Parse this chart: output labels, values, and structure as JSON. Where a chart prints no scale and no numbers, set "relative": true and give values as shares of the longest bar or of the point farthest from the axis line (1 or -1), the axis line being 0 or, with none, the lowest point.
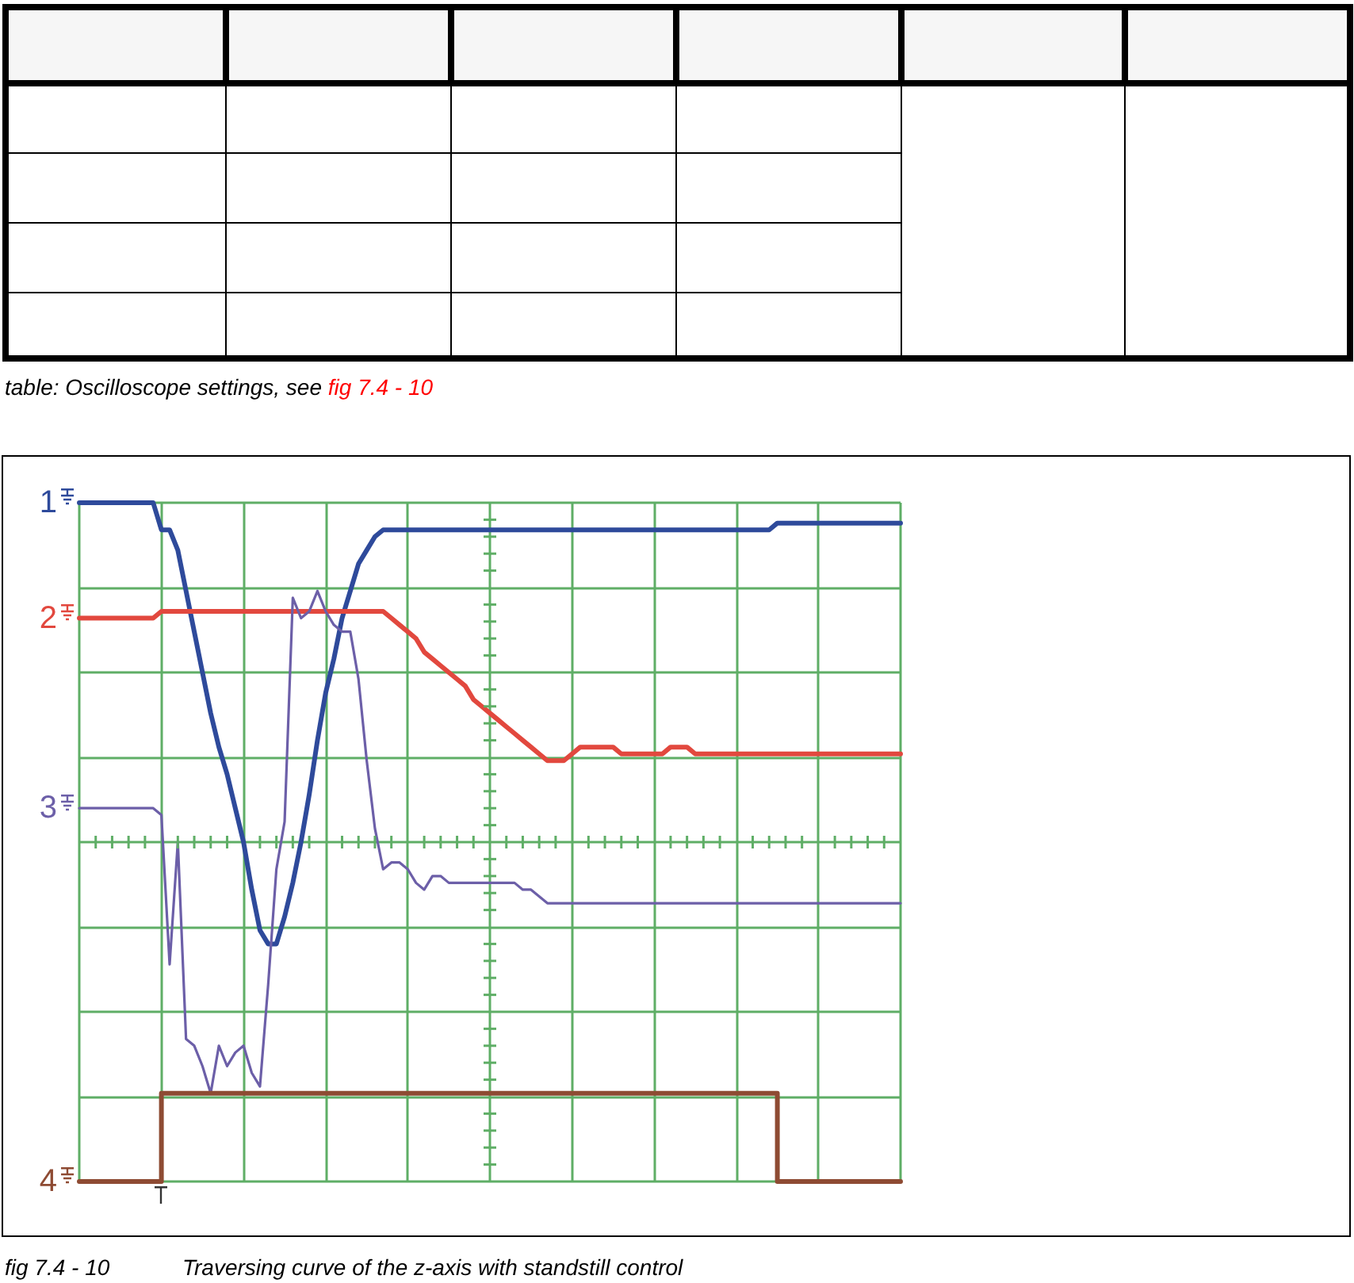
{
  "chart_data": {
    "type": "line",
    "title": "Traversing curve of the z-axis with standstill control",
    "annotations": [
      "table: Oscilloscope settings, see",
      "fig 7.4 - 10",
      "fig 7.4 - 10"
    ],
    "relative": true,
    "grid": true,
    "legend": "left",
    "marker": "none",
    "categories": [
      null,
      null,
      null,
      null,
      null,
      null,
      null,
      null,
      null,
      null,
      null,
      null,
      null,
      null,
      null,
      null,
      null,
      null,
      null,
      null,
      null,
      null,
      null,
      null,
      null,
      null,
      null,
      null,
      null,
      null,
      null,
      null,
      null,
      null,
      null,
      null,
      null,
      null,
      null,
      null,
      null,
      null,
      null,
      null,
      null,
      null,
      null,
      null,
      null,
      null,
      null,
      null,
      null,
      null,
      null,
      null,
      null,
      null,
      null,
      null,
      null,
      null,
      null,
      null,
      null,
      null,
      null,
      null,
      null,
      null,
      null,
      null,
      null,
      null,
      null,
      null,
      null,
      null,
      null,
      null,
      null,
      null,
      null,
      null,
      null,
      null,
      null,
      null,
      null,
      null,
      null,
      null,
      null,
      null,
      null,
      null,
      null,
      null,
      null,
      null,
      null
    ],
    "series": [
      {
        "name": "1",
        "color": "#2e4a9b",
        "values": [
          1,
          1,
          1,
          1,
          1,
          1,
          1,
          1,
          1,
          1,
          0.96,
          0.96,
          0.93,
          0.87,
          0.81,
          0.75,
          0.69,
          0.64,
          0.6,
          0.55,
          0.5,
          0.43,
          0.37,
          0.35,
          0.35,
          0.39,
          0.44,
          0.5,
          0.57,
          0.65,
          0.72,
          0.77,
          0.83,
          0.87,
          0.91,
          0.93,
          0.95,
          0.96,
          0.96,
          0.96,
          0.96,
          0.96,
          0.96,
          0.96,
          0.96,
          0.96,
          0.96,
          0.96,
          0.96,
          0.96,
          0.96,
          0.96,
          0.96,
          0.96,
          0.96,
          0.96,
          0.96,
          0.96,
          0.96,
          0.96,
          0.96,
          0.96,
          0.96,
          0.96,
          0.96,
          0.96,
          0.96,
          0.96,
          0.96,
          0.96,
          0.96,
          0.96,
          0.96,
          0.96,
          0.96,
          0.96,
          0.96,
          0.96,
          0.96,
          0.96,
          0.96,
          0.96,
          0.96,
          0.96,
          0.96,
          0.97,
          0.97,
          0.97,
          0.97,
          0.97,
          0.97,
          0.97,
          0.97,
          0.97,
          0.97,
          0.97,
          0.97,
          0.97,
          0.97,
          0.97,
          0.97
        ]
      },
      {
        "name": "2",
        "color": "#e2483e",
        "values": [
          0.83,
          0.83,
          0.83,
          0.83,
          0.83,
          0.83,
          0.83,
          0.83,
          0.83,
          0.83,
          0.84,
          0.84,
          0.84,
          0.84,
          0.84,
          0.84,
          0.84,
          0.84,
          0.84,
          0.84,
          0.84,
          0.84,
          0.84,
          0.84,
          0.84,
          0.84,
          0.84,
          0.84,
          0.84,
          0.84,
          0.84,
          0.84,
          0.84,
          0.84,
          0.84,
          0.84,
          0.84,
          0.84,
          0.83,
          0.82,
          0.81,
          0.8,
          0.78,
          0.77,
          0.76,
          0.75,
          0.74,
          0.73,
          0.71,
          0.7,
          0.69,
          0.68,
          0.67,
          0.66,
          0.65,
          0.64,
          0.63,
          0.62,
          0.62,
          0.62,
          0.63,
          0.64,
          0.64,
          0.64,
          0.64,
          0.64,
          0.63,
          0.63,
          0.63,
          0.63,
          0.63,
          0.63,
          0.64,
          0.64,
          0.64,
          0.63,
          0.63,
          0.63,
          0.63,
          0.63,
          0.63,
          0.63,
          0.63,
          0.63,
          0.63,
          0.63,
          0.63,
          0.63,
          0.63,
          0.63,
          0.63,
          0.63,
          0.63,
          0.63,
          0.63,
          0.63,
          0.63,
          0.63,
          0.63,
          0.63,
          0.63
        ]
      },
      {
        "name": "3",
        "color": "#6c5fa8",
        "values": [
          0.55,
          0.55,
          0.55,
          0.55,
          0.55,
          0.55,
          0.55,
          0.55,
          0.55,
          0.55,
          0.54,
          0.32,
          0.5,
          0.21,
          0.2,
          0.17,
          0.13,
          0.2,
          0.17,
          0.19,
          0.2,
          0.16,
          0.14,
          0.29,
          0.46,
          0.53,
          0.86,
          0.83,
          0.84,
          0.87,
          0.84,
          0.82,
          0.81,
          0.81,
          0.74,
          0.62,
          0.52,
          0.46,
          0.47,
          0.47,
          0.46,
          0.44,
          0.43,
          0.45,
          0.45,
          0.44,
          0.44,
          0.44,
          0.44,
          0.44,
          0.44,
          0.44,
          0.44,
          0.44,
          0.43,
          0.43,
          0.42,
          0.41,
          0.41,
          0.41,
          0.41,
          0.41,
          0.41,
          0.41,
          0.41,
          0.41,
          0.41,
          0.41,
          0.41,
          0.41,
          0.41,
          0.41,
          0.41,
          0.41,
          0.41,
          0.41,
          0.41,
          0.41,
          0.41,
          0.41,
          0.41,
          0.41,
          0.41,
          0.41,
          0.41,
          0.41,
          0.41,
          0.41,
          0.41,
          0.41,
          0.41,
          0.41,
          0.41,
          0.41,
          0.41,
          0.41,
          0.41,
          0.41,
          0.41,
          0.41,
          0.41
        ]
      },
      {
        "name": "4",
        "type": "step",
        "color": "#8e4b33",
        "values": [
          0,
          0,
          0,
          0,
          0,
          0,
          0,
          0,
          0,
          0,
          0.13,
          0.13,
          0.13,
          0.13,
          0.13,
          0.13,
          0.13,
          0.13,
          0.13,
          0.13,
          0.13,
          0.13,
          0.13,
          0.13,
          0.13,
          0.13,
          0.13,
          0.13,
          0.13,
          0.13,
          0.13,
          0.13,
          0.13,
          0.13,
          0.13,
          0.13,
          0.13,
          0.13,
          0.13,
          0.13,
          0.13,
          0.13,
          0.13,
          0.13,
          0.13,
          0.13,
          0.13,
          0.13,
          0.13,
          0.13,
          0.13,
          0.13,
          0.13,
          0.13,
          0.13,
          0.13,
          0.13,
          0.13,
          0.13,
          0.13,
          0.13,
          0.13,
          0.13,
          0.13,
          0.13,
          0.13,
          0.13,
          0.13,
          0.13,
          0.13,
          0.13,
          0.13,
          0.13,
          0.13,
          0.13,
          0.13,
          0.13,
          0.13,
          0.13,
          0.13,
          0.13,
          0.13,
          0.13,
          0.13,
          0.13,
          0,
          0,
          0,
          0,
          0,
          0,
          0,
          0,
          0,
          0,
          0,
          0,
          0,
          0,
          0,
          0
        ]
      }
    ]
  }
}
